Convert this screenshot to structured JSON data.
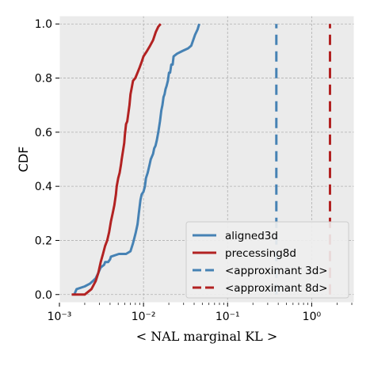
{
  "chart_data": {
    "type": "line",
    "xlabel": "< NAL marginal KL >",
    "ylabel": "CDF",
    "xscale": "log",
    "xlim": [
      0.001,
      3.2
    ],
    "ylim": [
      -0.03,
      1.03
    ],
    "x_ticks": [
      {
        "value": 0.001,
        "label": "10⁻³"
      },
      {
        "value": 0.01,
        "label": "10⁻²"
      },
      {
        "value": 0.1,
        "label": "10⁻¹"
      },
      {
        "value": 1,
        "label": "10⁰"
      }
    ],
    "y_ticks": [
      {
        "value": 0.0,
        "label": "0.0"
      },
      {
        "value": 0.2,
        "label": "0.2"
      },
      {
        "value": 0.4,
        "label": "0.4"
      },
      {
        "value": 0.6,
        "label": "0.6"
      },
      {
        "value": 0.8,
        "label": "0.8"
      },
      {
        "value": 1.0,
        "label": "1.0"
      }
    ],
    "grid": true,
    "legend_position": "lower right",
    "series": [
      {
        "name": "aligned3d",
        "color": "#4682b4",
        "style": "solid",
        "points": [
          [
            0.0015,
            0.0
          ],
          [
            0.0016,
            0.02
          ],
          [
            0.002,
            0.03
          ],
          [
            0.0023,
            0.04
          ],
          [
            0.0025,
            0.05
          ],
          [
            0.0027,
            0.06
          ],
          [
            0.0029,
            0.08
          ],
          [
            0.0031,
            0.1
          ],
          [
            0.0034,
            0.11
          ],
          [
            0.0035,
            0.12
          ],
          [
            0.0038,
            0.12
          ],
          [
            0.004,
            0.13
          ],
          [
            0.0041,
            0.14
          ],
          [
            0.0051,
            0.15
          ],
          [
            0.0062,
            0.15
          ],
          [
            0.007,
            0.16
          ],
          [
            0.0075,
            0.19
          ],
          [
            0.0078,
            0.21
          ],
          [
            0.0081,
            0.23
          ],
          [
            0.0085,
            0.26
          ],
          [
            0.0088,
            0.3
          ],
          [
            0.0092,
            0.35
          ],
          [
            0.0095,
            0.37
          ],
          [
            0.01,
            0.38
          ],
          [
            0.0104,
            0.4
          ],
          [
            0.0107,
            0.43
          ],
          [
            0.0112,
            0.45
          ],
          [
            0.0118,
            0.48
          ],
          [
            0.0122,
            0.5
          ],
          [
            0.013,
            0.52
          ],
          [
            0.0134,
            0.54
          ],
          [
            0.0139,
            0.55
          ],
          [
            0.0144,
            0.57
          ],
          [
            0.015,
            0.6
          ],
          [
            0.0157,
            0.64
          ],
          [
            0.0163,
            0.68
          ],
          [
            0.0168,
            0.7
          ],
          [
            0.0173,
            0.73
          ],
          [
            0.0178,
            0.74
          ],
          [
            0.0183,
            0.76
          ],
          [
            0.0188,
            0.77
          ],
          [
            0.0195,
            0.79
          ],
          [
            0.0201,
            0.82
          ],
          [
            0.0207,
            0.82
          ],
          [
            0.0214,
            0.85
          ],
          [
            0.0222,
            0.85
          ],
          [
            0.0228,
            0.88
          ],
          [
            0.025,
            0.89
          ],
          [
            0.029,
            0.9
          ],
          [
            0.034,
            0.91
          ],
          [
            0.037,
            0.92
          ],
          [
            0.041,
            0.96
          ],
          [
            0.044,
            0.98
          ],
          [
            0.046,
            1.0
          ]
        ]
      },
      {
        "name": "precessing8d",
        "color": "#b22222",
        "style": "solid",
        "points": [
          [
            0.0014,
            0.0
          ],
          [
            0.002,
            0.0
          ],
          [
            0.0024,
            0.02
          ],
          [
            0.0027,
            0.05
          ],
          [
            0.0029,
            0.08
          ],
          [
            0.003,
            0.1
          ],
          [
            0.0031,
            0.12
          ],
          [
            0.0033,
            0.15
          ],
          [
            0.0035,
            0.18
          ],
          [
            0.0037,
            0.2
          ],
          [
            0.0039,
            0.23
          ],
          [
            0.0041,
            0.27
          ],
          [
            0.0043,
            0.3
          ],
          [
            0.0045,
            0.33
          ],
          [
            0.0047,
            0.37
          ],
          [
            0.0048,
            0.4
          ],
          [
            0.005,
            0.43
          ],
          [
            0.0052,
            0.45
          ],
          [
            0.0054,
            0.48
          ],
          [
            0.0055,
            0.5
          ],
          [
            0.0057,
            0.53
          ],
          [
            0.0059,
            0.56
          ],
          [
            0.006,
            0.59
          ],
          [
            0.0062,
            0.63
          ],
          [
            0.0064,
            0.64
          ],
          [
            0.0066,
            0.67
          ],
          [
            0.0068,
            0.7
          ],
          [
            0.007,
            0.74
          ],
          [
            0.0072,
            0.76
          ],
          [
            0.0075,
            0.79
          ],
          [
            0.008,
            0.8
          ],
          [
            0.0085,
            0.82
          ],
          [
            0.009,
            0.84
          ],
          [
            0.0095,
            0.86
          ],
          [
            0.01,
            0.88
          ],
          [
            0.011,
            0.9
          ],
          [
            0.012,
            0.92
          ],
          [
            0.013,
            0.94
          ],
          [
            0.014,
            0.97
          ],
          [
            0.015,
            0.99
          ],
          [
            0.016,
            1.0
          ]
        ]
      },
      {
        "name": "<approximant 3d>",
        "color": "#4682b4",
        "style": "dashed",
        "points": [
          [
            0.38,
            0.0
          ],
          [
            0.38,
            1.0
          ]
        ]
      },
      {
        "name": "<approximant 8d>",
        "color": "#b22222",
        "style": "dashed",
        "points": [
          [
            1.65,
            0.0
          ],
          [
            1.65,
            1.0
          ]
        ]
      }
    ]
  }
}
